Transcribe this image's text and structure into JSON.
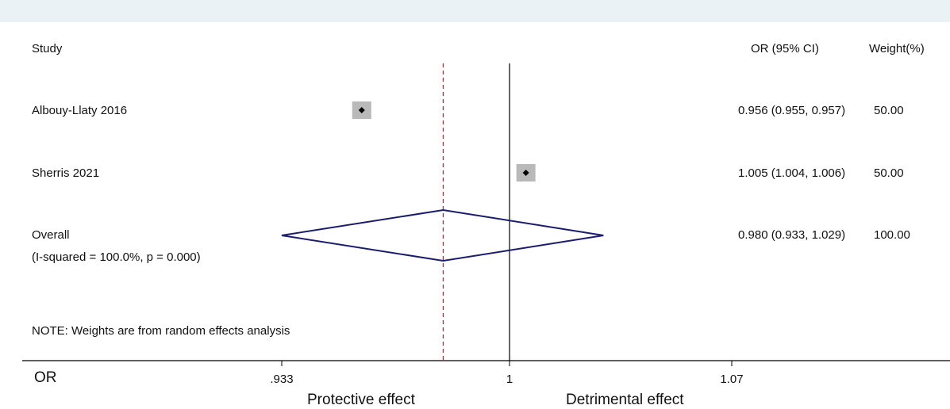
{
  "chart_data": {
    "type": "forest",
    "header": {
      "study": "Study",
      "estimate": "OR (95% CI)",
      "weight": "Weight(%)"
    },
    "studies": [
      {
        "label": "Albouy-Llaty 2016",
        "or": 0.956,
        "lower": 0.955,
        "upper": 0.957,
        "ci_text": "0.956 (0.955, 0.957)",
        "weight": 50.0,
        "weight_text": "50.00"
      },
      {
        "label": "Sherris 2021",
        "or": 1.005,
        "lower": 1.004,
        "upper": 1.006,
        "ci_text": "1.005 (1.004, 1.006)",
        "weight": 50.0,
        "weight_text": "50.00"
      }
    ],
    "overall": {
      "label": "Overall",
      "heterogeneity": "(I-squared = 100.0%, p = 0.000)",
      "or": 0.98,
      "lower": 0.933,
      "upper": 1.029,
      "ci_text": "0.980 (0.933, 1.029)",
      "weight_text": "100.00"
    },
    "note": "NOTE: Weights are from random effects analysis",
    "x_axis": {
      "label": "OR",
      "scale": "log",
      "ticks": [
        {
          "value": 0.933,
          "label": ".933"
        },
        {
          "value": 1.0,
          "label": "1"
        },
        {
          "value": 1.07,
          "label": "1.07"
        }
      ],
      "range": [
        0.887,
        1.125
      ]
    },
    "null_value": 1.0,
    "direction_labels": {
      "left": "Protective effect",
      "right": "Detrimental effect"
    },
    "colors": {
      "diamond": "#1c1c6e",
      "overall_line": "#a83232",
      "box": "#b9b9b9",
      "point": "#000000",
      "background_band": "#ebf2f6"
    }
  }
}
